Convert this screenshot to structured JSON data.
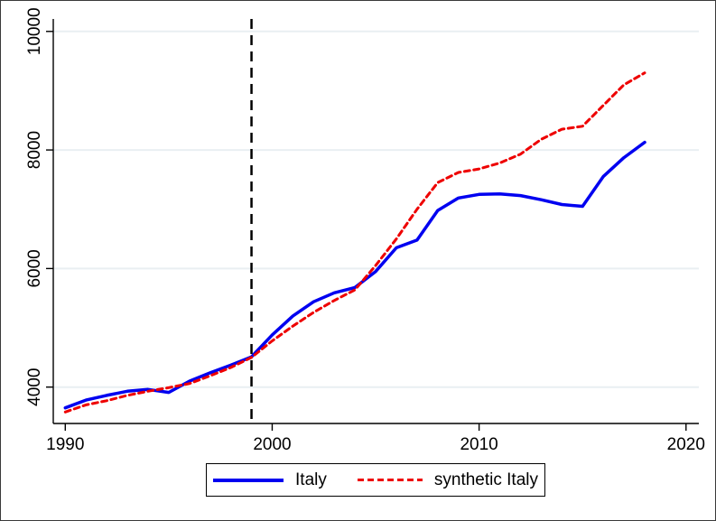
{
  "chart_data": {
    "type": "line",
    "title": "",
    "xlabel": "",
    "ylabel": "",
    "x": [
      1990,
      1991,
      1992,
      1993,
      1994,
      1995,
      1996,
      1997,
      1998,
      1999,
      2000,
      2001,
      2002,
      2003,
      2004,
      2005,
      2006,
      2007,
      2008,
      2009,
      2010,
      2011,
      2012,
      2013,
      2014,
      2015,
      2016,
      2017,
      2018
    ],
    "series": [
      {
        "name": "Italy",
        "color": "#0000f0",
        "style": "solid",
        "values": [
          3650,
          3780,
          3860,
          3930,
          3960,
          3910,
          4100,
          4240,
          4370,
          4510,
          4880,
          5200,
          5440,
          5590,
          5680,
          5950,
          6350,
          6480,
          6980,
          7190,
          7250,
          7260,
          7230,
          7160,
          7080,
          7050,
          7550,
          7870,
          8130
        ]
      },
      {
        "name": "synthetic Italy",
        "color": "#ee0000",
        "style": "dashed",
        "values": [
          3580,
          3700,
          3770,
          3860,
          3930,
          3990,
          4060,
          4190,
          4330,
          4500,
          4780,
          5030,
          5260,
          5460,
          5640,
          6050,
          6500,
          7000,
          7450,
          7620,
          7680,
          7780,
          7930,
          8180,
          8350,
          8400,
          8750,
          9100,
          9300
        ]
      }
    ],
    "xticks": [
      "1990",
      "2000",
      "2010",
      "2020"
    ],
    "yticks": [
      "4000",
      "6000",
      "8000",
      "10000"
    ],
    "xlim": [
      1989.42,
      2020.62
    ],
    "ylim": [
      3386,
      10210
    ],
    "treatment_line": {
      "x": 1999,
      "color": "#000000",
      "style": "dashed"
    },
    "grid": "horizontal",
    "gridline_color": "#e9eff2",
    "legend_position": "bottom-center"
  }
}
